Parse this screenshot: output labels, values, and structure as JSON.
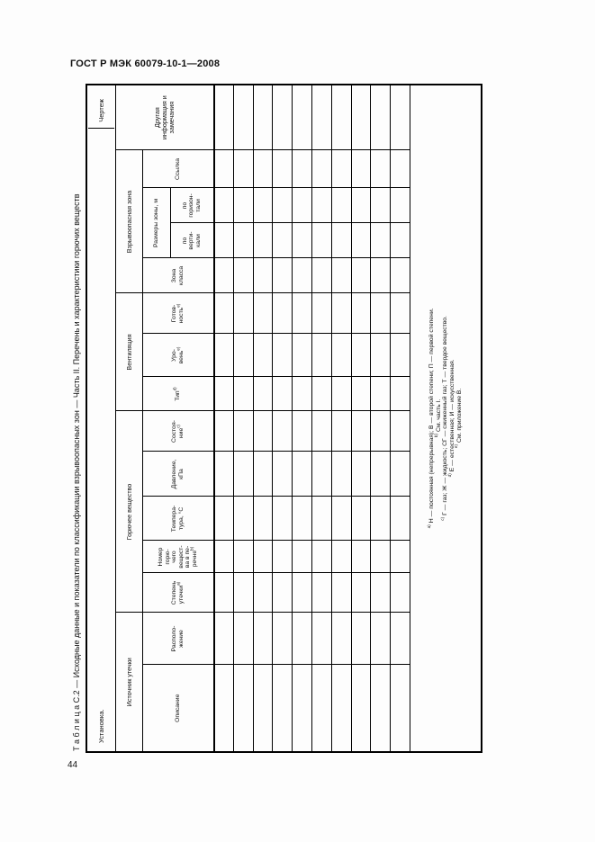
{
  "page": {
    "doc_header": "ГОСТ Р МЭК 60079-10-1—2008",
    "page_number": "44"
  },
  "table": {
    "title": "Т а б л и ц а  С.2 — Исходные данные и показатели по классификации взрывоопасных зон — Часть II. Перечень и характеристики горючих веществ",
    "form_row": {
      "left_label": "Установка.",
      "right_label": "Чертеж"
    },
    "groups": {
      "leak_source": "Источник утечки",
      "flammable_substance": "Горючее вещество",
      "ventilation": "Вентиляция",
      "hazardous_zone": "Взрывоопасная зона",
      "zone_size": "Размеры зоны, м",
      "other_info": "Другая\nинформация и\nзамечания"
    },
    "columns": {
      "description": "Описание",
      "location": "Располо-\nжение",
      "leak_grade": {
        "label": "Степень\nутечки",
        "sup": "a)"
      },
      "substance_number": {
        "label": "Номер\nгорю-\nчего\nвещест-\nва в пе-\nречне",
        "sup": "b)"
      },
      "temperature": "Темпера-\nтура, °С",
      "pressure": "Давление,\nкПа",
      "state": {
        "label": "Состоя-\nние",
        "sup": "c)"
      },
      "vent_type": {
        "label": "Тип",
        "sup": "d)"
      },
      "vent_level": {
        "label": "Уро-\nвень",
        "sup": "e)"
      },
      "vent_availability": {
        "label": "Готов-\nность",
        "sup": "e)"
      },
      "zone_class": "Зона\nкласса",
      "size_vertical": "по\nверти-\nкали",
      "size_horizontal": "по\nгоризон-\nтали",
      "reference": "Ссылка"
    },
    "data_rows": 10,
    "footnotes": [
      {
        "sup": "a)",
        "text": "Н — постоянная (непрерывная); В — второй степени; П — первой степени."
      },
      {
        "sup": "b)",
        "text": "См. часть I."
      },
      {
        "sup": "c)",
        "text": "Г — газ; Ж — жидкость; СГ — сжиженный газ; Т — твердое вещество."
      },
      {
        "sup": "d)",
        "text": "Е — естественная; И — искусственная."
      },
      {
        "sup": "e)",
        "text": "См. приложение В."
      }
    ]
  }
}
